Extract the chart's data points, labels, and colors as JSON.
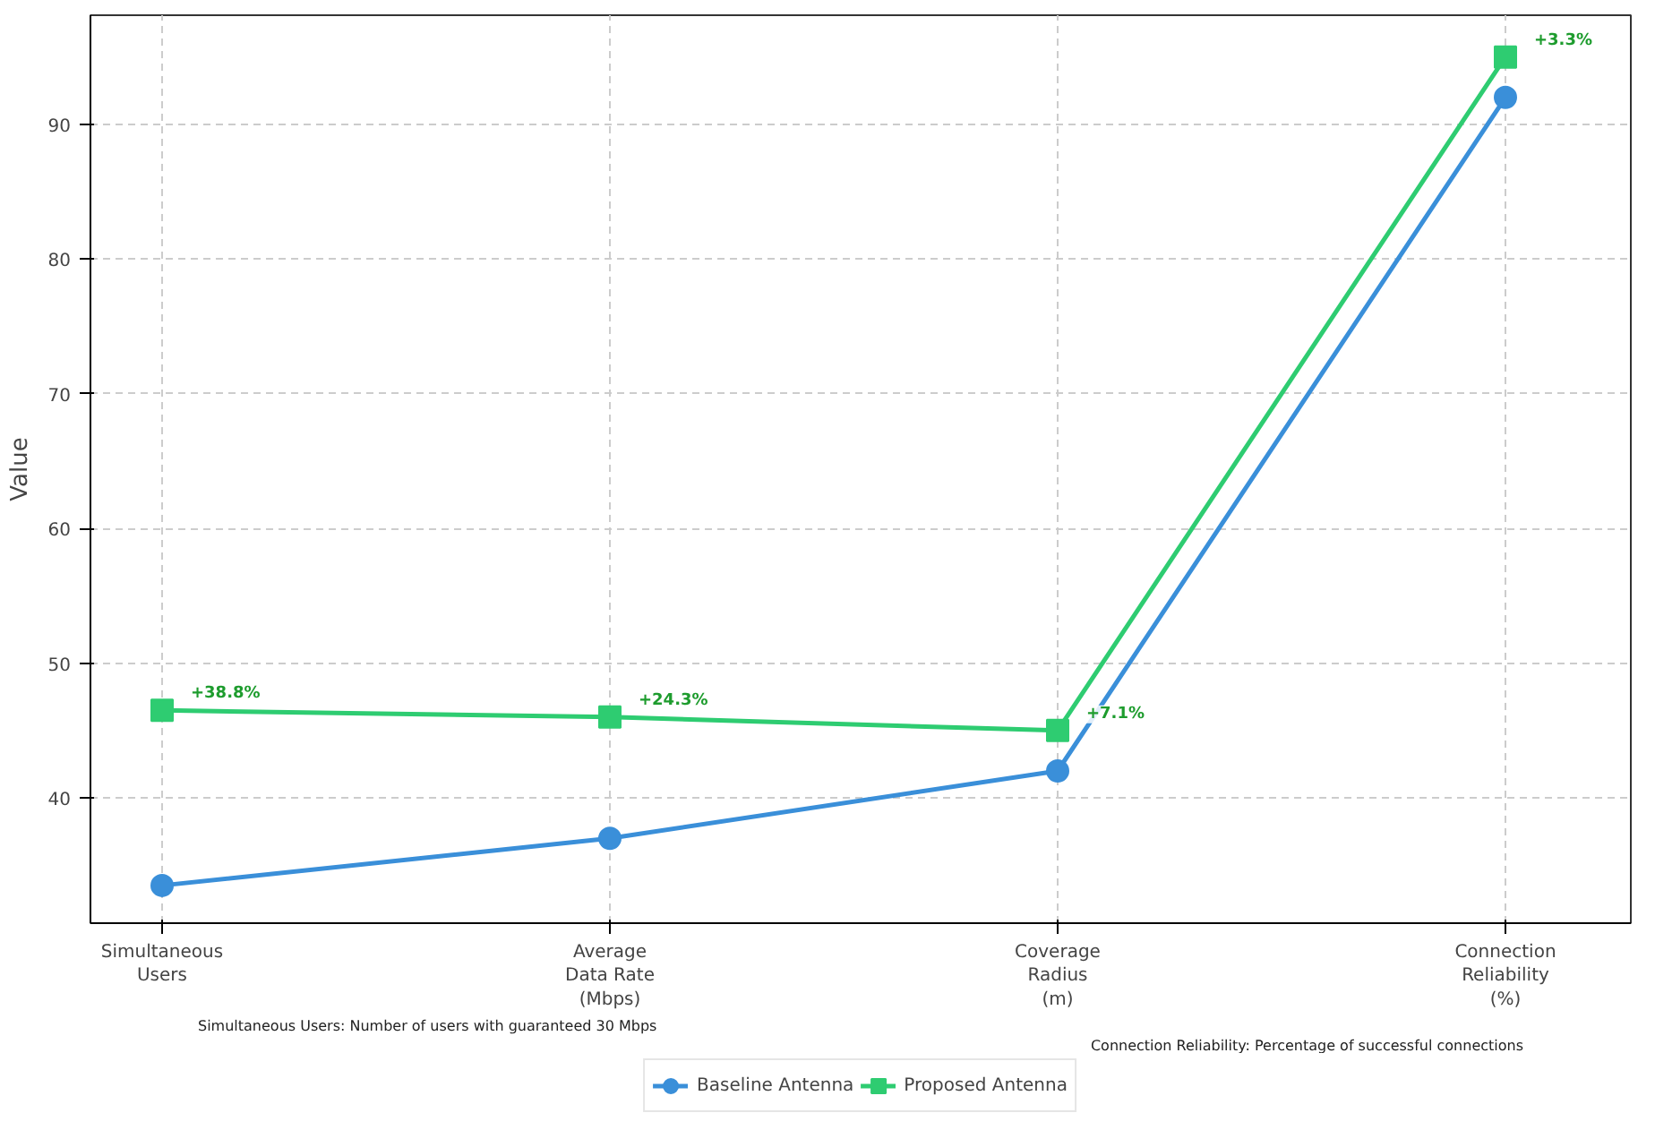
{
  "chart_data": {
    "type": "line",
    "ylabel": "Value",
    "categories": [
      "Simultaneous\nUsers",
      "Average\nData Rate\n(Mbps)",
      "Coverage\nRadius\n(m)",
      "Connection\nReliability\n(%)"
    ],
    "series": [
      {
        "name": "Baseline Antenna",
        "color": "#3a8fd9",
        "values": [
          33.5,
          37,
          42,
          92
        ],
        "marker": "circle"
      },
      {
        "name": "Proposed Antenna",
        "color": "#2ecc71",
        "values": [
          46.5,
          46,
          45,
          95
        ],
        "marker": "square"
      }
    ],
    "ylim": [
      30.7,
      98.1
    ],
    "yticks": [
      40,
      50,
      60,
      70,
      80,
      90
    ],
    "grid": true,
    "legend": "bottom",
    "line_style": "solid",
    "annotations": [
      {
        "text": "+38.8%",
        "x": "Simultaneous\nUsers",
        "y": 46.5
      },
      {
        "text": "+24.3%",
        "x": "Average\nData Rate\n(Mbps)",
        "y": 46
      },
      {
        "text": "+7.1%",
        "x": "Coverage\nRadius\n(m)",
        "y": 45
      },
      {
        "text": "+3.3%",
        "x": "Connection\nReliability\n(%)",
        "y": 95
      },
      "Simultaneous Users: Number of users with guaranteed 30 Mbps",
      "Connection Reliability: Percentage of successful connections"
    ]
  }
}
